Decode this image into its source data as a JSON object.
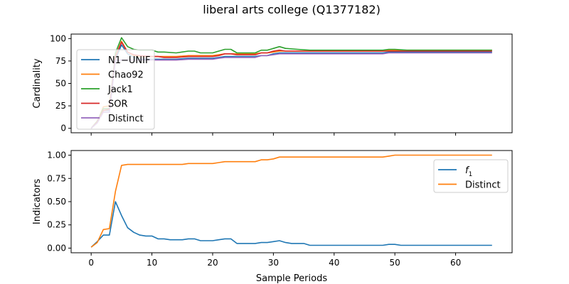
{
  "title": "liberal arts college (Q1377182)",
  "chart_data": [
    {
      "type": "line",
      "ylabel": "Cardinality",
      "xlabel": "",
      "xlim": [
        -3.3,
        69.3
      ],
      "ylim": [
        -5,
        105
      ],
      "yticks": [
        0,
        25,
        50,
        75,
        100
      ],
      "xticks": [
        0,
        10,
        20,
        30,
        40,
        50,
        60
      ],
      "show_x_ticklabels": false,
      "legend_position": "center-left",
      "series": [
        {
          "name": "N1−UNIF",
          "color": "#1f77b4",
          "x": [
            0,
            1,
            2,
            3,
            4,
            5,
            6,
            7,
            8,
            10,
            11,
            12,
            14,
            16,
            17,
            18,
            20,
            21,
            22,
            23,
            24,
            26,
            27,
            28,
            29,
            30,
            31,
            32,
            34,
            36,
            38,
            40,
            44,
            48,
            49,
            50,
            52,
            56,
            60,
            64,
            66
          ],
          "y": [
            0,
            7,
            20,
            20,
            77,
            93,
            83,
            79,
            77,
            77,
            77,
            77,
            77,
            78,
            78,
            78,
            78,
            79,
            80,
            80,
            80,
            80,
            80,
            81,
            81,
            83,
            84,
            84,
            84,
            84,
            84,
            84,
            84,
            84,
            85,
            85,
            85,
            85,
            85,
            85,
            85
          ]
        },
        {
          "name": "Chao92",
          "color": "#ff7f0e",
          "x": [
            0,
            1,
            2,
            3,
            4,
            5,
            6,
            7,
            8,
            10,
            11,
            12,
            14,
            16,
            17,
            18,
            20,
            21,
            22,
            23,
            24,
            26,
            27,
            28,
            29,
            30,
            31,
            32,
            34,
            36,
            38,
            40,
            44,
            48,
            49,
            50,
            52,
            56,
            60,
            64,
            66
          ],
          "y": [
            0,
            7,
            24,
            25,
            80,
            97,
            85,
            81,
            80,
            80,
            80,
            80,
            80,
            81,
            81,
            81,
            81,
            82,
            83,
            83,
            83,
            83,
            83,
            84,
            84,
            85,
            86,
            86,
            86,
            86,
            86,
            86,
            86,
            86,
            87,
            87,
            87,
            87,
            87,
            87,
            87
          ]
        },
        {
          "name": "Jack1",
          "color": "#2ca02c",
          "x": [
            0,
            1,
            2,
            3,
            4,
            5,
            6,
            7,
            8,
            10,
            11,
            12,
            14,
            16,
            17,
            18,
            20,
            21,
            22,
            23,
            24,
            26,
            27,
            28,
            29,
            30,
            31,
            32,
            34,
            36,
            38,
            40,
            44,
            48,
            49,
            50,
            52,
            56,
            60,
            64,
            66
          ],
          "y": [
            0,
            8,
            22,
            22,
            84,
            101,
            91,
            88,
            87,
            87,
            85,
            85,
            84,
            86,
            86,
            84,
            84,
            86,
            88,
            88,
            84,
            84,
            84,
            87,
            87,
            89,
            91,
            89,
            88,
            87,
            87,
            87,
            87,
            87,
            88,
            88,
            87,
            87,
            87,
            87,
            87
          ]
        },
        {
          "name": "SOR",
          "color": "#d62728",
          "x": [
            0,
            1,
            2,
            3,
            4,
            5,
            6,
            7,
            8,
            10,
            11,
            12,
            14,
            16,
            17,
            18,
            20,
            21,
            22,
            23,
            24,
            26,
            27,
            28,
            29,
            30,
            31,
            32,
            34,
            36,
            38,
            40,
            44,
            48,
            49,
            50,
            52,
            56,
            60,
            64,
            66
          ],
          "y": [
            0,
            7,
            20,
            21,
            80,
            96,
            85,
            82,
            81,
            80,
            80,
            79,
            79,
            80,
            80,
            80,
            80,
            81,
            83,
            83,
            82,
            82,
            82,
            84,
            84,
            86,
            87,
            86,
            86,
            86,
            86,
            86,
            86,
            86,
            86,
            86,
            86,
            86,
            86,
            86,
            86
          ]
        },
        {
          "name": "Distinct",
          "color": "#9467bd",
          "x": [
            0,
            1,
            2,
            3,
            4,
            5,
            6,
            7,
            8,
            10,
            11,
            12,
            14,
            16,
            17,
            18,
            20,
            21,
            22,
            23,
            24,
            26,
            27,
            28,
            29,
            30,
            31,
            32,
            34,
            36,
            38,
            40,
            44,
            48,
            49,
            50,
            52,
            56,
            60,
            64,
            66
          ],
          "y": [
            0,
            6,
            18,
            18,
            76,
            76,
            76,
            76,
            76,
            76,
            76,
            76,
            76,
            77,
            77,
            77,
            77,
            78,
            79,
            79,
            79,
            79,
            79,
            81,
            81,
            82,
            83,
            83,
            83,
            83,
            83,
            83,
            83,
            83,
            84,
            84,
            84,
            84,
            84,
            84,
            84
          ]
        }
      ]
    },
    {
      "type": "line",
      "ylabel": "Indicators",
      "xlabel": "Sample Periods",
      "xlim": [
        -3.3,
        69.3
      ],
      "ylim": [
        -0.05,
        1.05
      ],
      "yticks": [
        0.0,
        0.25,
        0.5,
        0.75,
        1.0
      ],
      "ytick_labels": [
        "0.00",
        "0.25",
        "0.50",
        "0.75",
        "1.00"
      ],
      "xticks": [
        0,
        10,
        20,
        30,
        40,
        50,
        60
      ],
      "show_x_ticklabels": true,
      "legend_position": "upper-right",
      "series": [
        {
          "name": "f",
          "name_subscript": "1",
          "color": "#1f77b4",
          "x": [
            0,
            1,
            2,
            3,
            4,
            5,
            6,
            7,
            8,
            9,
            10,
            11,
            12,
            13,
            14,
            15,
            16,
            17,
            18,
            19,
            20,
            21,
            22,
            23,
            24,
            25,
            26,
            27,
            28,
            29,
            30,
            31,
            32,
            33,
            34,
            35,
            36,
            40,
            44,
            48,
            49,
            50,
            51,
            52,
            56,
            60,
            64,
            66
          ],
          "y": [
            0.01,
            0.07,
            0.14,
            0.14,
            0.5,
            0.35,
            0.22,
            0.17,
            0.14,
            0.13,
            0.13,
            0.1,
            0.1,
            0.09,
            0.09,
            0.09,
            0.1,
            0.1,
            0.08,
            0.08,
            0.08,
            0.09,
            0.1,
            0.1,
            0.05,
            0.05,
            0.05,
            0.05,
            0.06,
            0.06,
            0.07,
            0.08,
            0.06,
            0.05,
            0.05,
            0.05,
            0.03,
            0.03,
            0.03,
            0.03,
            0.04,
            0.04,
            0.03,
            0.03,
            0.03,
            0.03,
            0.03,
            0.03
          ]
        },
        {
          "name": "Distinct",
          "color": "#ff7f0e",
          "x": [
            0,
            1,
            2,
            3,
            4,
            5,
            6,
            7,
            8,
            10,
            12,
            14,
            15,
            16,
            17,
            18,
            20,
            21,
            22,
            23,
            24,
            26,
            27,
            28,
            29,
            30,
            31,
            32,
            34,
            36,
            40,
            44,
            48,
            49,
            50,
            52,
            56,
            60,
            64,
            66
          ],
          "y": [
            0.01,
            0.06,
            0.2,
            0.21,
            0.61,
            0.89,
            0.9,
            0.9,
            0.9,
            0.9,
            0.9,
            0.9,
            0.9,
            0.91,
            0.91,
            0.91,
            0.91,
            0.92,
            0.93,
            0.93,
            0.93,
            0.93,
            0.93,
            0.95,
            0.95,
            0.96,
            0.98,
            0.98,
            0.98,
            0.98,
            0.98,
            0.98,
            0.98,
            0.99,
            1.0,
            1.0,
            1.0,
            1.0,
            1.0,
            1.0
          ]
        }
      ]
    }
  ]
}
